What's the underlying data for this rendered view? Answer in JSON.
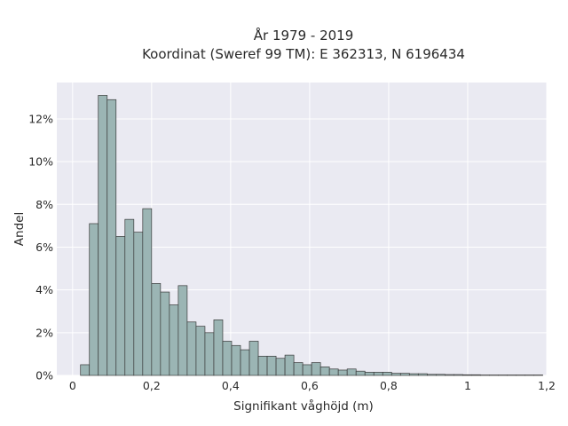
{
  "chart_data": {
    "type": "bar",
    "title": "År 1979 - 2019",
    "subtitle": "Koordinat (Sweref 99 TM): E 362313, N 6196434",
    "xlabel": "Signifikant våghöjd (m)",
    "ylabel": "Andel",
    "xlim": [
      -0.04,
      1.2
    ],
    "ylim": [
      0,
      13.7
    ],
    "x_ticks": [
      {
        "value": 0,
        "label": "0"
      },
      {
        "value": 0.2,
        "label": "0,2"
      },
      {
        "value": 0.4,
        "label": "0,4"
      },
      {
        "value": 0.6,
        "label": "0,6"
      },
      {
        "value": 0.8,
        "label": "0,8"
      },
      {
        "value": 1.0,
        "label": "1"
      },
      {
        "value": 1.2,
        "label": "1,2"
      }
    ],
    "y_ticks": [
      {
        "value": 0,
        "label": "0%"
      },
      {
        "value": 2,
        "label": "2%"
      },
      {
        "value": 4,
        "label": "4%"
      },
      {
        "value": 6,
        "label": "6%"
      },
      {
        "value": 8,
        "label": "8%"
      },
      {
        "value": 10,
        "label": "10%"
      },
      {
        "value": 12,
        "label": "12%"
      }
    ],
    "grid": true,
    "bin_start": 0.02,
    "bin_width": 0.0225,
    "values": [
      0.5,
      7.1,
      13.1,
      12.9,
      6.5,
      7.3,
      6.7,
      7.8,
      4.3,
      3.9,
      3.3,
      4.2,
      2.5,
      2.3,
      2.0,
      2.6,
      1.6,
      1.4,
      1.2,
      1.6,
      0.9,
      0.9,
      0.8,
      0.95,
      0.6,
      0.5,
      0.6,
      0.4,
      0.3,
      0.25,
      0.3,
      0.2,
      0.15,
      0.15,
      0.15,
      0.1,
      0.1,
      0.08,
      0.08,
      0.05,
      0.05,
      0.04,
      0.04,
      0.03,
      0.03,
      0.02,
      0.02,
      0.02,
      0.02,
      0.02,
      0.02,
      0.02
    ],
    "colors": {
      "bar_fill": "#9bb5b4",
      "bar_stroke": "#3a3a3a",
      "plot_bg": "#eaeaf2",
      "grid": "#ffffff"
    }
  }
}
